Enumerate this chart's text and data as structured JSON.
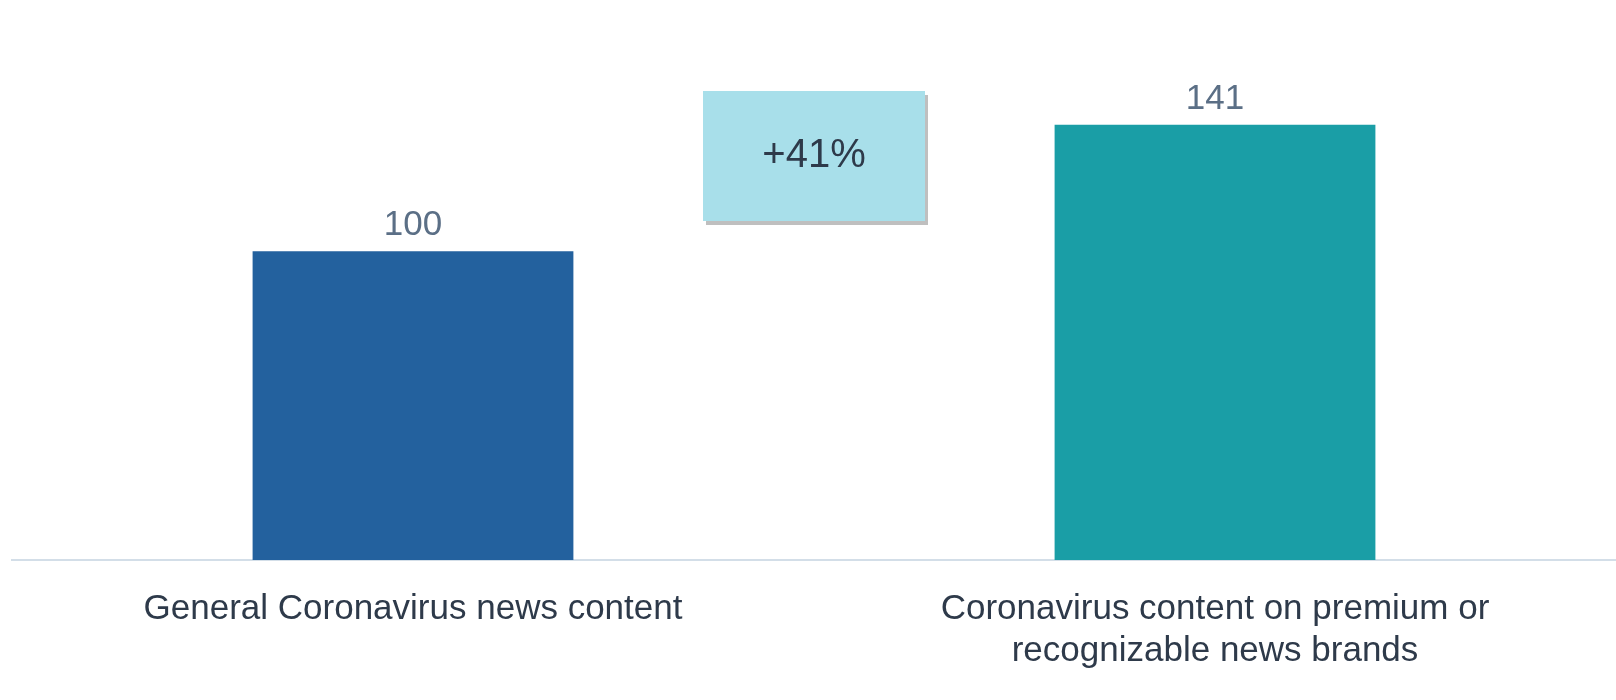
{
  "chart_data": {
    "type": "bar",
    "categories": [
      "General Coronavirus news content",
      "Coronavirus content on premium or recognizable news brands"
    ],
    "values": [
      100,
      141
    ],
    "colors": [
      "#23619e",
      "#1a9ea6"
    ],
    "data_labels": true,
    "grid": false,
    "legend": false,
    "annotations": [
      "+41%"
    ]
  }
}
